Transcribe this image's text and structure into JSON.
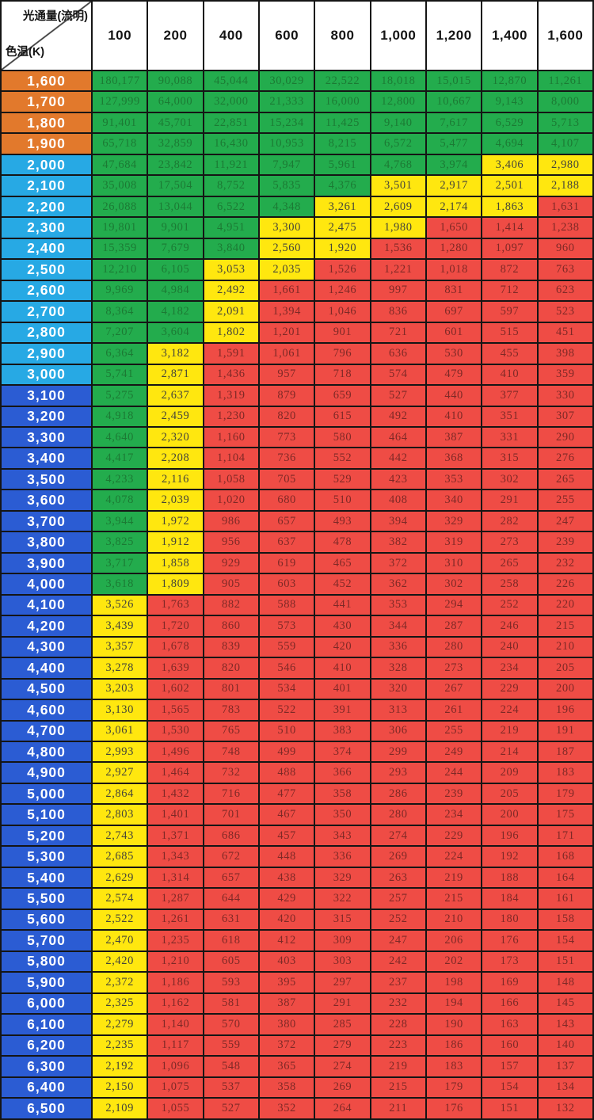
{
  "chart_data": {
    "type": "table",
    "corner": {
      "flux_label": "光通量(流明)",
      "ct_label": "色温(K)"
    },
    "flux_lumens": [
      "100",
      "200",
      "400",
      "600",
      "800",
      "1,000",
      "1,200",
      "1,400",
      "1,600"
    ],
    "color_key": {
      "g": "green",
      "y": "yellow",
      "r": "red"
    },
    "colors": {
      "label_orange": "#E2792C",
      "label_cyan": "#27A9E4",
      "label_blue": "#2B5CD3",
      "green_bg": "#23AC4D",
      "green_text": "#1C7A34",
      "yellow_bg": "#FFE70F",
      "yellow_text": "#45443A",
      "red_bg": "#EF4C45",
      "red_text": "#7E2926",
      "label_text": "#FFFFFF",
      "header_text": "#141414"
    },
    "rows": [
      {
        "ct": "1,600",
        "group": "orange",
        "colors": "ggggggggg",
        "values": [
          "180,177",
          "90,088",
          "45,044",
          "30,029",
          "22,522",
          "18,018",
          "15,015",
          "12,870",
          "11,261"
        ]
      },
      {
        "ct": "1,700",
        "group": "orange",
        "colors": "ggggggggg",
        "values": [
          "127,999",
          "64,000",
          "32,000",
          "21,333",
          "16,000",
          "12,800",
          "10,667",
          "9,143",
          "8,000"
        ]
      },
      {
        "ct": "1,800",
        "group": "orange",
        "colors": "ggggggggg",
        "values": [
          "91,401",
          "45,701",
          "22,851",
          "15,234",
          "11,425",
          "9,140",
          "7,617",
          "6,529",
          "5,713"
        ]
      },
      {
        "ct": "1,900",
        "group": "orange",
        "colors": "ggggggggg",
        "values": [
          "65,718",
          "32,859",
          "16,430",
          "10,953",
          "8,215",
          "6,572",
          "5,477",
          "4,694",
          "4,107"
        ]
      },
      {
        "ct": "2,000",
        "group": "cyan",
        "colors": "gggggggyy",
        "values": [
          "47,684",
          "23,842",
          "11,921",
          "7,947",
          "5,961",
          "4,768",
          "3,974",
          "3,406",
          "2,980"
        ]
      },
      {
        "ct": "2,100",
        "group": "cyan",
        "colors": "gggggyyyy",
        "values": [
          "35,008",
          "17,504",
          "8,752",
          "5,835",
          "4,376",
          "3,501",
          "2,917",
          "2,501",
          "2,188"
        ]
      },
      {
        "ct": "2,200",
        "group": "cyan",
        "colors": "ggggyyyyr",
        "values": [
          "26,088",
          "13,044",
          "6,522",
          "4,348",
          "3,261",
          "2,609",
          "2,174",
          "1,863",
          "1,631"
        ]
      },
      {
        "ct": "2,300",
        "group": "cyan",
        "colors": "gggyyyrrr",
        "values": [
          "19,801",
          "9,901",
          "4,951",
          "3,300",
          "2,475",
          "1,980",
          "1,650",
          "1,414",
          "1,238"
        ]
      },
      {
        "ct": "2,400",
        "group": "cyan",
        "colors": "gggyyrrrr",
        "values": [
          "15,359",
          "7,679",
          "3,840",
          "2,560",
          "1,920",
          "1,536",
          "1,280",
          "1,097",
          "960"
        ]
      },
      {
        "ct": "2,500",
        "group": "cyan",
        "colors": "ggyyrrrrr",
        "values": [
          "12,210",
          "6,105",
          "3,053",
          "2,035",
          "1,526",
          "1,221",
          "1,018",
          "872",
          "763"
        ]
      },
      {
        "ct": "2,600",
        "group": "cyan",
        "colors": "ggyrrrrrr",
        "values": [
          "9,969",
          "4,984",
          "2,492",
          "1,661",
          "1,246",
          "997",
          "831",
          "712",
          "623"
        ]
      },
      {
        "ct": "2,700",
        "group": "cyan",
        "colors": "ggyrrrrrr",
        "values": [
          "8,364",
          "4,182",
          "2,091",
          "1,394",
          "1,046",
          "836",
          "697",
          "597",
          "523"
        ]
      },
      {
        "ct": "2,800",
        "group": "cyan",
        "colors": "ggyrrrrrr",
        "values": [
          "7,207",
          "3,604",
          "1,802",
          "1,201",
          "901",
          "721",
          "601",
          "515",
          "451"
        ]
      },
      {
        "ct": "2,900",
        "group": "cyan",
        "colors": "gyrrrrrrr",
        "values": [
          "6,364",
          "3,182",
          "1,591",
          "1,061",
          "796",
          "636",
          "530",
          "455",
          "398"
        ]
      },
      {
        "ct": "3,000",
        "group": "cyan",
        "colors": "gyrrrrrrr",
        "values": [
          "5,741",
          "2,871",
          "1,436",
          "957",
          "718",
          "574",
          "479",
          "410",
          "359"
        ]
      },
      {
        "ct": "3,100",
        "group": "blue",
        "colors": "gyrrrrrrr",
        "values": [
          "5,275",
          "2,637",
          "1,319",
          "879",
          "659",
          "527",
          "440",
          "377",
          "330"
        ]
      },
      {
        "ct": "3,200",
        "group": "blue",
        "colors": "gyrrrrrrr",
        "values": [
          "4,918",
          "2,459",
          "1,230",
          "820",
          "615",
          "492",
          "410",
          "351",
          "307"
        ]
      },
      {
        "ct": "3,300",
        "group": "blue",
        "colors": "gyrrrrrrr",
        "values": [
          "4,640",
          "2,320",
          "1,160",
          "773",
          "580",
          "464",
          "387",
          "331",
          "290"
        ]
      },
      {
        "ct": "3,400",
        "group": "blue",
        "colors": "gyrrrrrrr",
        "values": [
          "4,417",
          "2,208",
          "1,104",
          "736",
          "552",
          "442",
          "368",
          "315",
          "276"
        ]
      },
      {
        "ct": "3,500",
        "group": "blue",
        "colors": "gyrrrrrrr",
        "values": [
          "4,233",
          "2,116",
          "1,058",
          "705",
          "529",
          "423",
          "353",
          "302",
          "265"
        ]
      },
      {
        "ct": "3,600",
        "group": "blue",
        "colors": "gyrrrrrrr",
        "values": [
          "4,078",
          "2,039",
          "1,020",
          "680",
          "510",
          "408",
          "340",
          "291",
          "255"
        ]
      },
      {
        "ct": "3,700",
        "group": "blue",
        "colors": "gyrrrrrrr",
        "values": [
          "3,944",
          "1,972",
          "986",
          "657",
          "493",
          "394",
          "329",
          "282",
          "247"
        ]
      },
      {
        "ct": "3,800",
        "group": "blue",
        "colors": "gyrrrrrrr",
        "values": [
          "3,825",
          "1,912",
          "956",
          "637",
          "478",
          "382",
          "319",
          "273",
          "239"
        ]
      },
      {
        "ct": "3,900",
        "group": "blue",
        "colors": "gyrrrrrrr",
        "values": [
          "3,717",
          "1,858",
          "929",
          "619",
          "465",
          "372",
          "310",
          "265",
          "232"
        ]
      },
      {
        "ct": "4,000",
        "group": "blue",
        "colors": "gyrrrrrrr",
        "values": [
          "3,618",
          "1,809",
          "905",
          "603",
          "452",
          "362",
          "302",
          "258",
          "226"
        ]
      },
      {
        "ct": "4,100",
        "group": "blue",
        "colors": "yrrrrrrrr",
        "values": [
          "3,526",
          "1,763",
          "882",
          "588",
          "441",
          "353",
          "294",
          "252",
          "220"
        ]
      },
      {
        "ct": "4,200",
        "group": "blue",
        "colors": "yrrrrrrrr",
        "values": [
          "3,439",
          "1,720",
          "860",
          "573",
          "430",
          "344",
          "287",
          "246",
          "215"
        ]
      },
      {
        "ct": "4,300",
        "group": "blue",
        "colors": "yrrrrrrrr",
        "values": [
          "3,357",
          "1,678",
          "839",
          "559",
          "420",
          "336",
          "280",
          "240",
          "210"
        ]
      },
      {
        "ct": "4,400",
        "group": "blue",
        "colors": "yrrrrrrrr",
        "values": [
          "3,278",
          "1,639",
          "820",
          "546",
          "410",
          "328",
          "273",
          "234",
          "205"
        ]
      },
      {
        "ct": "4,500",
        "group": "blue",
        "colors": "yrrrrrrrr",
        "values": [
          "3,203",
          "1,602",
          "801",
          "534",
          "401",
          "320",
          "267",
          "229",
          "200"
        ]
      },
      {
        "ct": "4,600",
        "group": "blue",
        "colors": "yrrrrrrrr",
        "values": [
          "3,130",
          "1,565",
          "783",
          "522",
          "391",
          "313",
          "261",
          "224",
          "196"
        ]
      },
      {
        "ct": "4,700",
        "group": "blue",
        "colors": "yrrrrrrrr",
        "values": [
          "3,061",
          "1,530",
          "765",
          "510",
          "383",
          "306",
          "255",
          "219",
          "191"
        ]
      },
      {
        "ct": "4,800",
        "group": "blue",
        "colors": "yrrrrrrrr",
        "values": [
          "2,993",
          "1,496",
          "748",
          "499",
          "374",
          "299",
          "249",
          "214",
          "187"
        ]
      },
      {
        "ct": "4,900",
        "group": "blue",
        "colors": "yrrrrrrrr",
        "values": [
          "2,927",
          "1,464",
          "732",
          "488",
          "366",
          "293",
          "244",
          "209",
          "183"
        ]
      },
      {
        "ct": "5,000",
        "group": "blue",
        "colors": "yrrrrrrrr",
        "values": [
          "2,864",
          "1,432",
          "716",
          "477",
          "358",
          "286",
          "239",
          "205",
          "179"
        ]
      },
      {
        "ct": "5,100",
        "group": "blue",
        "colors": "yrrrrrrrr",
        "values": [
          "2,803",
          "1,401",
          "701",
          "467",
          "350",
          "280",
          "234",
          "200",
          "175"
        ]
      },
      {
        "ct": "5,200",
        "group": "blue",
        "colors": "yrrrrrrrr",
        "values": [
          "2,743",
          "1,371",
          "686",
          "457",
          "343",
          "274",
          "229",
          "196",
          "171"
        ]
      },
      {
        "ct": "5,300",
        "group": "blue",
        "colors": "yrrrrrrrr",
        "values": [
          "2,685",
          "1,343",
          "672",
          "448",
          "336",
          "269",
          "224",
          "192",
          "168"
        ]
      },
      {
        "ct": "5,400",
        "group": "blue",
        "colors": "yrrrrrrrr",
        "values": [
          "2,629",
          "1,314",
          "657",
          "438",
          "329",
          "263",
          "219",
          "188",
          "164"
        ]
      },
      {
        "ct": "5,500",
        "group": "blue",
        "colors": "yrrrrrrrr",
        "values": [
          "2,574",
          "1,287",
          "644",
          "429",
          "322",
          "257",
          "215",
          "184",
          "161"
        ]
      },
      {
        "ct": "5,600",
        "group": "blue",
        "colors": "yrrrrrrrr",
        "values": [
          "2,522",
          "1,261",
          "631",
          "420",
          "315",
          "252",
          "210",
          "180",
          "158"
        ]
      },
      {
        "ct": "5,700",
        "group": "blue",
        "colors": "yrrrrrrrr",
        "values": [
          "2,470",
          "1,235",
          "618",
          "412",
          "309",
          "247",
          "206",
          "176",
          "154"
        ]
      },
      {
        "ct": "5,800",
        "group": "blue",
        "colors": "yrrrrrrrr",
        "values": [
          "2,420",
          "1,210",
          "605",
          "403",
          "303",
          "242",
          "202",
          "173",
          "151"
        ]
      },
      {
        "ct": "5,900",
        "group": "blue",
        "colors": "yrrrrrrrr",
        "values": [
          "2,372",
          "1,186",
          "593",
          "395",
          "297",
          "237",
          "198",
          "169",
          "148"
        ]
      },
      {
        "ct": "6,000",
        "group": "blue",
        "colors": "yrrrrrrrr",
        "values": [
          "2,325",
          "1,162",
          "581",
          "387",
          "291",
          "232",
          "194",
          "166",
          "145"
        ]
      },
      {
        "ct": "6,100",
        "group": "blue",
        "colors": "yrrrrrrrr",
        "values": [
          "2,279",
          "1,140",
          "570",
          "380",
          "285",
          "228",
          "190",
          "163",
          "143"
        ]
      },
      {
        "ct": "6,200",
        "group": "blue",
        "colors": "yrrrrrrrr",
        "values": [
          "2,235",
          "1,117",
          "559",
          "372",
          "279",
          "223",
          "186",
          "160",
          "140"
        ]
      },
      {
        "ct": "6,300",
        "group": "blue",
        "colors": "yrrrrrrrr",
        "values": [
          "2,192",
          "1,096",
          "548",
          "365",
          "274",
          "219",
          "183",
          "157",
          "137"
        ]
      },
      {
        "ct": "6,400",
        "group": "blue",
        "colors": "yrrrrrrrr",
        "values": [
          "2,150",
          "1,075",
          "537",
          "358",
          "269",
          "215",
          "179",
          "154",
          "134"
        ]
      },
      {
        "ct": "6,500",
        "group": "blue",
        "colors": "yrrrrrrrr",
        "values": [
          "2,109",
          "1,055",
          "527",
          "352",
          "264",
          "211",
          "176",
          "151",
          "132"
        ]
      }
    ]
  }
}
